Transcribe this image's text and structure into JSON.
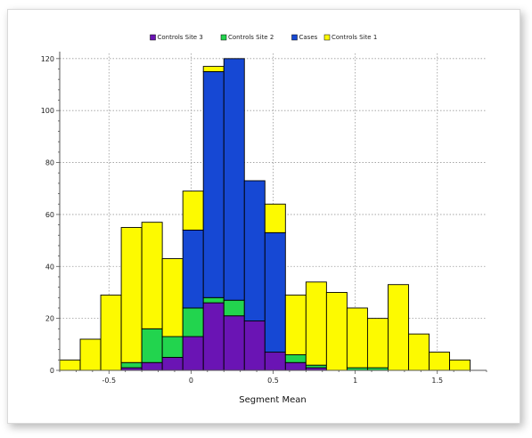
{
  "chart_data": {
    "type": "bar",
    "stacked": true,
    "xlabel": "Segment Mean",
    "ylabel": "",
    "xlim": [
      -0.8,
      1.8
    ],
    "ylim": [
      0,
      122
    ],
    "bin_width": 0.125,
    "bin_start": -0.8,
    "x_ticks": [
      {
        "value": -0.5,
        "label": "-0.5"
      },
      {
        "value": 0,
        "label": "0"
      },
      {
        "value": 0.5,
        "label": "0.5"
      },
      {
        "value": 1,
        "label": "1"
      },
      {
        "value": 1.5,
        "label": "1.5"
      }
    ],
    "y_ticks": [
      {
        "value": 0,
        "label": "0"
      },
      {
        "value": 20,
        "label": "20"
      },
      {
        "value": 40,
        "label": "40"
      },
      {
        "value": 60,
        "label": "60"
      },
      {
        "value": 80,
        "label": "80"
      },
      {
        "value": 100,
        "label": "100"
      },
      {
        "value": 120,
        "label": "120"
      }
    ],
    "grid": true,
    "legend_position": "top-center",
    "series": [
      {
        "name": "Controls Site 3",
        "color": "#6a14b4",
        "values": [
          0,
          0,
          0,
          1,
          3,
          5,
          13,
          26,
          21,
          19,
          7,
          3,
          1,
          0,
          0,
          0,
          0,
          0,
          0,
          0
        ]
      },
      {
        "name": "Controls Site 2",
        "color": "#22d44e",
        "values": [
          0,
          0,
          0,
          2,
          13,
          8,
          11,
          2,
          6,
          0,
          0,
          3,
          1,
          0,
          1,
          1,
          0,
          0,
          0,
          0
        ]
      },
      {
        "name": "Cases",
        "color": "#1648d4",
        "values": [
          0,
          0,
          0,
          0,
          0,
          0,
          30,
          87,
          93,
          54,
          46,
          0,
          0,
          0,
          0,
          0,
          0,
          0,
          0,
          0
        ]
      },
      {
        "name": "Controls Site 1",
        "color": "#fdfa00",
        "values": [
          4,
          12,
          29,
          52,
          41,
          30,
          15,
          2,
          0,
          0,
          11,
          23,
          32,
          30,
          23,
          19,
          33,
          14,
          7,
          4
        ]
      }
    ]
  }
}
